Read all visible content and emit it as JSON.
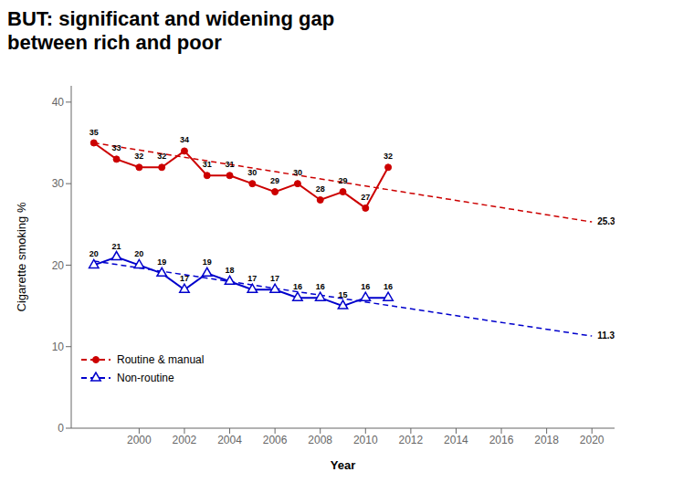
{
  "chart_data": {
    "type": "line",
    "title": "BUT: significant and widening gap\nbetween rich and poor",
    "xlabel": "Year",
    "ylabel": "Cigarette smoking %",
    "x": [
      1998,
      1999,
      2000,
      2001,
      2002,
      2003,
      2004,
      2005,
      2006,
      2007,
      2008,
      2009,
      2010,
      2011,
      2012
    ],
    "series": [
      {
        "name": "Routine & manual",
        "color": "#cc0000",
        "marker": "circle",
        "line_style": "solid",
        "values": [
          35,
          33,
          32,
          32,
          34,
          31,
          31,
          30,
          29,
          30,
          28,
          29,
          27,
          32,
          null
        ],
        "trend": {
          "x": [
            1998,
            2020
          ],
          "values": [
            35.0,
            25.3
          ],
          "line_style": "dashed",
          "end_label": "25.3"
        }
      },
      {
        "name": "Non-routine",
        "color": "#0000cc",
        "marker": "triangle",
        "line_style": "solid",
        "values": [
          20,
          21,
          20,
          19,
          17,
          19,
          18,
          17,
          17,
          16,
          16,
          15,
          16,
          16,
          null
        ],
        "trend": {
          "x": [
            1998,
            2020
          ],
          "values": [
            20.5,
            11.3
          ],
          "line_style": "dashed",
          "end_label": "11.3"
        }
      }
    ],
    "xlim": [
      1997,
      2021
    ],
    "xticks": [
      2000,
      2002,
      2004,
      2006,
      2008,
      2010,
      2012,
      2014,
      2016,
      2018,
      2020
    ],
    "ylim": [
      0,
      42
    ],
    "yticks": [
      0,
      10,
      20,
      30,
      40
    ],
    "data_labels": true,
    "legend": "lower left",
    "grid": false
  }
}
